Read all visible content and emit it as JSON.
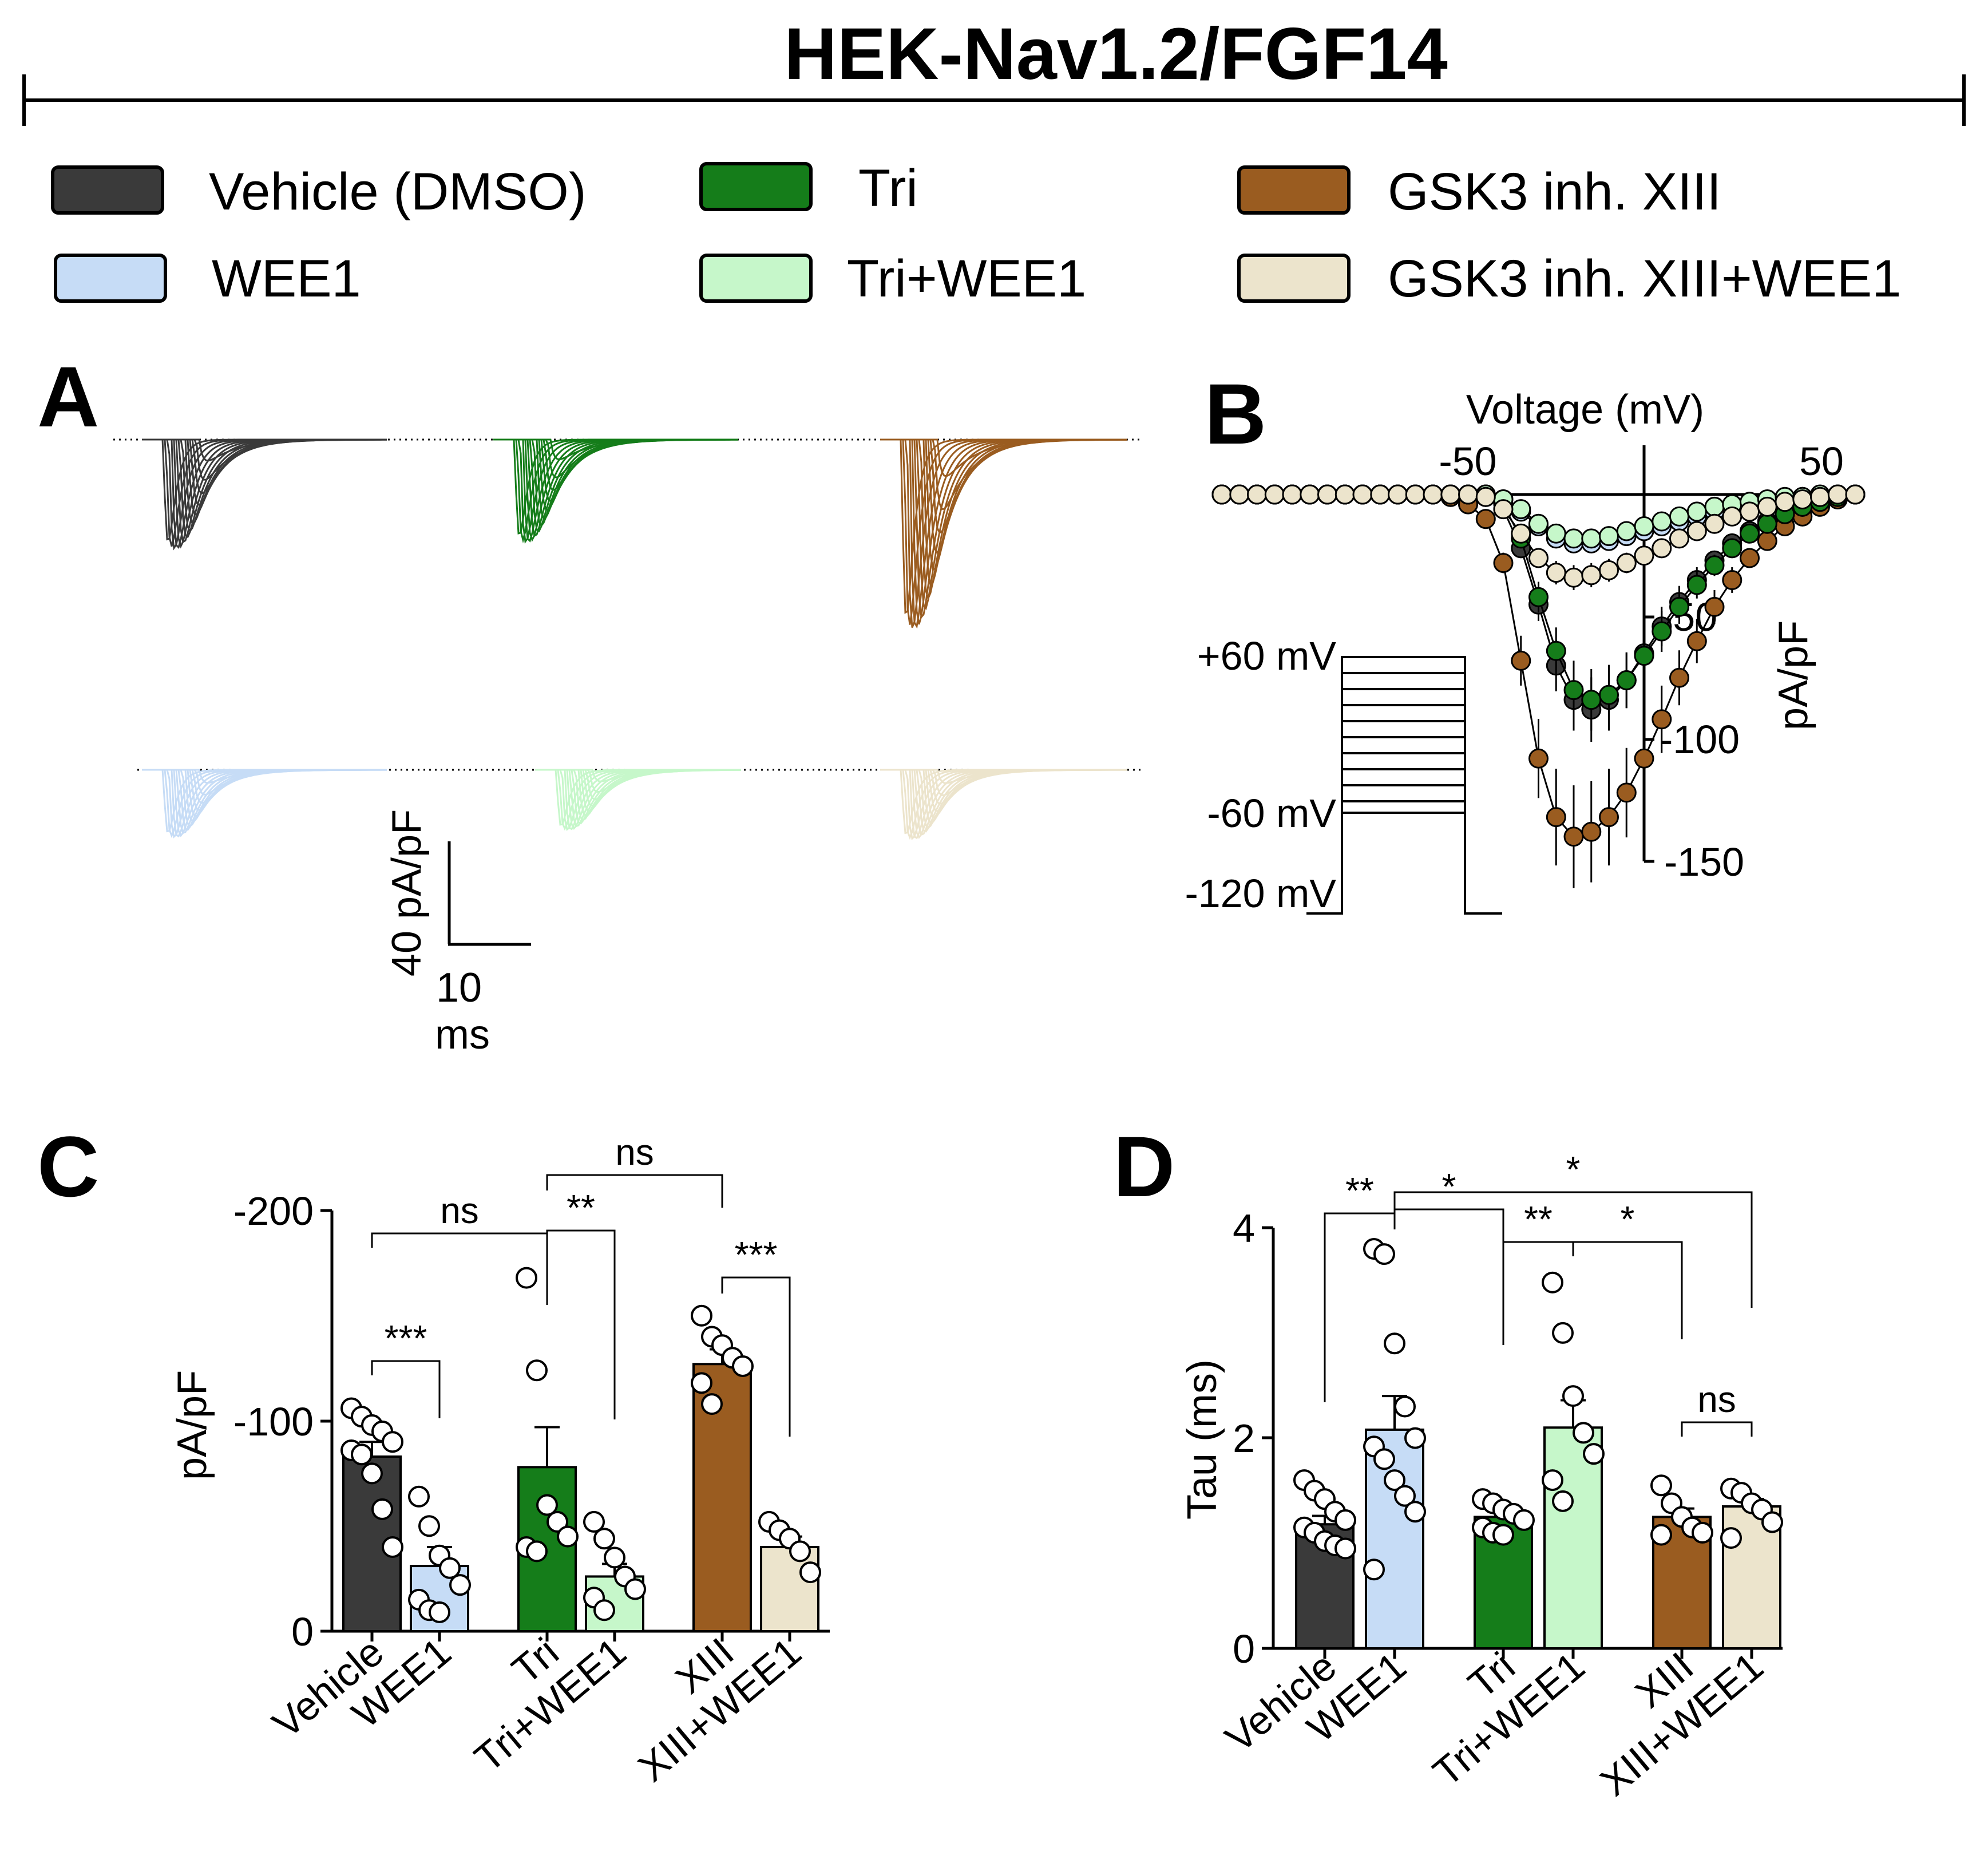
{
  "title": "HEK-Nav1.2/FGF14",
  "colors": {
    "Vehicle (DMSO)": "#3a3a3a",
    "WEE1": "#c6dcf6",
    "Tri": "#157d1a",
    "Tri+WEE1": "#c6f7ca",
    "GSK3 inh. XIII": "#9a5c20",
    "GSK3 inh. XIII+WEE1": "#ece4cc"
  },
  "legend": [
    "Vehicle (DMSO)",
    "WEE1",
    "Tri",
    "Tri+WEE1",
    "GSK3 inh. XIII",
    "GSK3 inh. XIII+WEE1"
  ],
  "panels": {
    "A": "A",
    "B": "B",
    "C": "C",
    "D": "D"
  },
  "panel_A": {
    "scale_y": "40 pA/pF",
    "scale_x_value": "10",
    "scale_x_unit": "ms"
  },
  "panel_B": {
    "xlabel": "Voltage (mV)",
    "ylabel": "pA/pF",
    "protocol_labels": [
      "+60 mV",
      "-60 mV",
      "-120 mV"
    ]
  },
  "chart_data": [
    {
      "panel": "B",
      "type": "scatter",
      "xlabel": "Voltage (mV)",
      "ylabel": "pA/pF",
      "x_ticks": [
        "-50",
        "50"
      ],
      "y_ticks": [
        "-50",
        "-100",
        "-150"
      ],
      "x": [
        -120,
        -115,
        -110,
        -105,
        -100,
        -95,
        -90,
        -85,
        -80,
        -75,
        -70,
        -65,
        -60,
        -55,
        -50,
        -45,
        -40,
        -35,
        -30,
        -25,
        -20,
        -15,
        -10,
        -5,
        0,
        5,
        10,
        15,
        20,
        25,
        30,
        35,
        40,
        45,
        50,
        55,
        60
      ],
      "series": [
        {
          "name": "Vehicle (DMSO)",
          "values": [
            0,
            0,
            0,
            0,
            0,
            0,
            0,
            0,
            0,
            0,
            0,
            0,
            0,
            0,
            0,
            -1,
            -6,
            -22,
            -45,
            -70,
            -84,
            -88,
            -84,
            -76,
            -65,
            -54,
            -44,
            -35,
            -27,
            -20,
            -15,
            -11,
            -8,
            -5,
            -3,
            -1,
            0
          ]
        },
        {
          "name": "WEE1",
          "values": [
            0,
            0,
            0,
            0,
            0,
            0,
            0,
            0,
            0,
            0,
            0,
            0,
            0,
            0,
            0,
            0,
            -2,
            -7,
            -13,
            -18,
            -20,
            -20,
            -19,
            -17,
            -15,
            -13,
            -11,
            -9,
            -7,
            -5,
            -4,
            -3,
            -2,
            -1,
            -1,
            0,
            0
          ]
        },
        {
          "name": "Tri",
          "values": [
            0,
            0,
            0,
            0,
            0,
            0,
            0,
            0,
            0,
            0,
            0,
            0,
            0,
            0,
            0,
            0,
            -4,
            -18,
            -42,
            -64,
            -80,
            -84,
            -82,
            -76,
            -66,
            -56,
            -46,
            -37,
            -29,
            -22,
            -16,
            -12,
            -8,
            -5,
            -3,
            -1,
            0
          ]
        },
        {
          "name": "Tri+WEE1",
          "values": [
            0,
            0,
            0,
            0,
            0,
            0,
            0,
            0,
            0,
            0,
            0,
            0,
            0,
            0,
            0,
            0,
            -2,
            -6,
            -12,
            -16,
            -18,
            -18,
            -17,
            -15,
            -13,
            -11,
            -9,
            -7,
            -5,
            -4,
            -3,
            -2,
            -1,
            -1,
            0,
            0,
            0
          ]
        },
        {
          "name": "GSK3 inh. XIII",
          "values": [
            0,
            0,
            0,
            0,
            0,
            0,
            0,
            0,
            0,
            0,
            0,
            0,
            0,
            -1,
            -4,
            -10,
            -28,
            -68,
            -108,
            -132,
            -140,
            -138,
            -132,
            -122,
            -108,
            -92,
            -75,
            -60,
            -46,
            -35,
            -26,
            -19,
            -13,
            -9,
            -5,
            -2,
            0
          ]
        },
        {
          "name": "GSK3 inh. XIII+WEE1",
          "values": [
            0,
            0,
            0,
            0,
            0,
            0,
            0,
            0,
            0,
            0,
            0,
            0,
            0,
            0,
            0,
            -1,
            -6,
            -16,
            -26,
            -32,
            -34,
            -33,
            -31,
            -28,
            -25,
            -22,
            -18,
            -15,
            -12,
            -9,
            -7,
            -5,
            -3,
            -2,
            -1,
            0,
            0
          ]
        }
      ]
    },
    {
      "panel": "C",
      "type": "bar",
      "ylabel": "pA/pF",
      "ylim": [
        0,
        -200
      ],
      "y_ticks": [
        "-200",
        "-100",
        "0"
      ],
      "categories": [
        "Vehicle",
        "WEE1",
        "Tri",
        "Tri+WEE1",
        "XIII",
        "XIII+WEE1"
      ],
      "values": [
        -83,
        -31,
        -78,
        -26,
        -127,
        -40
      ],
      "errors": [
        7,
        9,
        19,
        6,
        7,
        5
      ],
      "points": [
        [
          -106,
          -102,
          -98,
          -95,
          -90,
          -86,
          -84,
          -75,
          -58,
          -40
        ],
        [
          -64,
          -50,
          -36,
          -30,
          -22,
          -15,
          -10,
          -9
        ],
        [
          -168,
          -124,
          -60,
          -52,
          -45,
          -40,
          -38
        ],
        [
          -52,
          -44,
          -35,
          -26,
          -20,
          -16,
          -10
        ],
        [
          -150,
          -140,
          -136,
          -130,
          -126,
          -118,
          -108
        ],
        [
          -52,
          -48,
          -44,
          -38,
          -28
        ]
      ],
      "significance": [
        {
          "from": "Vehicle",
          "to": "WEE1",
          "label": "***"
        },
        {
          "from": "Vehicle",
          "to": "Tri",
          "label": "ns"
        },
        {
          "from": "Tri",
          "to": "Tri+WEE1",
          "label": "**"
        },
        {
          "from": "Tri",
          "to": "XIII",
          "label": "ns"
        },
        {
          "from": "XIII",
          "to": "XIII+WEE1",
          "label": "***"
        }
      ]
    },
    {
      "panel": "D",
      "type": "bar",
      "ylabel": "Tau (ms)",
      "ylim": [
        0,
        4
      ],
      "y_ticks": [
        "4",
        "2",
        "0"
      ],
      "categories": [
        "Vehicle",
        "WEE1",
        "Tri",
        "Tri+WEE1",
        "XIII",
        "XIII+WEE1"
      ],
      "values": [
        1.18,
        2.08,
        1.25,
        2.1,
        1.25,
        1.35
      ],
      "errors": [
        0.08,
        0.32,
        0.06,
        0.26,
        0.08,
        0.07
      ],
      "points": [
        [
          1.6,
          1.5,
          1.42,
          1.3,
          1.22,
          1.15,
          1.1,
          1.02,
          0.98,
          0.95
        ],
        [
          3.8,
          3.75,
          2.9,
          2.3,
          2.0,
          1.92,
          1.8,
          1.6,
          1.45,
          1.3,
          0.75
        ],
        [
          1.42,
          1.38,
          1.32,
          1.28,
          1.22,
          1.15,
          1.1,
          1.08
        ],
        [
          3.48,
          3.0,
          2.4,
          2.05,
          1.85,
          1.6,
          1.4
        ],
        [
          1.55,
          1.38,
          1.25,
          1.15,
          1.1,
          1.08
        ],
        [
          1.52,
          1.48,
          1.38,
          1.32,
          1.2,
          1.05
        ]
      ],
      "significance": [
        {
          "from": "Vehicle",
          "to": "WEE1",
          "label": "**"
        },
        {
          "from": "WEE1",
          "to": "Tri",
          "label": "*"
        },
        {
          "from": "Tri",
          "to": "Tri+WEE1",
          "label": "**"
        },
        {
          "from": "WEE1",
          "to": "XIII+WEE1",
          "label": "*"
        },
        {
          "from": "Tri+WEE1",
          "to": "XIII",
          "label": "*"
        },
        {
          "from": "XIII",
          "to": "XIII+WEE1",
          "label": "ns"
        }
      ]
    }
  ]
}
